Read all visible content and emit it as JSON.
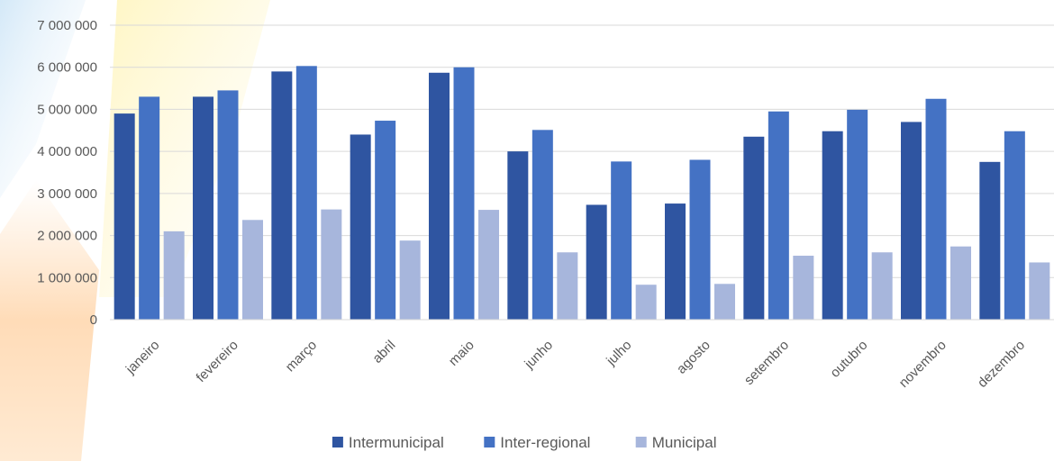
{
  "chart_data": {
    "type": "bar",
    "title": "",
    "xlabel": "",
    "ylabel": "",
    "ylim": [
      0,
      7000000
    ],
    "yticks": [
      0,
      1000000,
      2000000,
      3000000,
      4000000,
      5000000,
      6000000,
      7000000
    ],
    "ytick_labels": [
      "0",
      "1 000 000",
      "2 000 000",
      "3 000 000",
      "4 000 000",
      "5 000 000",
      "6 000 000",
      "7 000 000"
    ],
    "grid": true,
    "legend_position": "bottom",
    "categories": [
      "janeiro",
      "fevereiro",
      "março",
      "abril",
      "maio",
      "junho",
      "julho",
      "agosto",
      "setembro",
      "outubro",
      "novembro",
      "dezembro"
    ],
    "series": [
      {
        "name": "Intermunicipal",
        "color": "#2F55A1",
        "values": [
          4900000,
          5300000,
          5900000,
          4400000,
          5870000,
          4000000,
          2730000,
          2760000,
          4350000,
          4480000,
          4700000,
          3750000
        ]
      },
      {
        "name": "Inter-regional",
        "color": "#4472C4",
        "values": [
          5300000,
          5450000,
          6030000,
          4730000,
          6000000,
          4510000,
          3760000,
          3800000,
          4950000,
          4990000,
          5250000,
          4480000
        ]
      },
      {
        "name": "Municipal",
        "color": "#A7B6DC",
        "values": [
          2100000,
          2370000,
          2620000,
          1880000,
          2610000,
          1600000,
          830000,
          850000,
          1520000,
          1600000,
          1740000,
          1360000
        ]
      }
    ]
  }
}
